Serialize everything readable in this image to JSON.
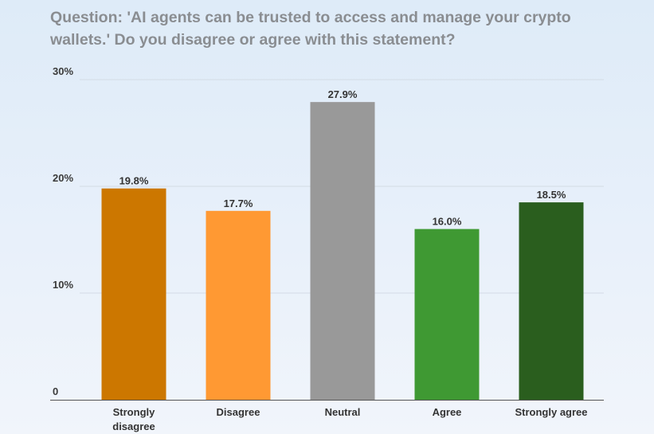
{
  "title": "Question: 'AI agents can be trusted to access and manage your crypto wallets.' Do you disagree or agree with this statement?",
  "chart_data": {
    "type": "bar",
    "title": "Question: 'AI agents can be trusted to access and manage your crypto wallets.' Do you disagree or agree with this statement?",
    "categories": [
      "Strongly disagree",
      "Disagree",
      "Neutral",
      "Agree",
      "Strongly agree"
    ],
    "category_lines": [
      [
        "Strongly",
        "disagree"
      ],
      [
        "Disagree"
      ],
      [
        "Neutral"
      ],
      [
        "Agree"
      ],
      [
        "Strongly agree"
      ]
    ],
    "values": [
      19.8,
      17.7,
      27.9,
      16.0,
      18.5
    ],
    "value_labels": [
      "19.8%",
      "17.7%",
      "27.9%",
      "16.0%",
      "18.5%"
    ],
    "colors": [
      "#cc7700",
      "#ff9933",
      "#999999",
      "#3f9933",
      "#2a5e1e"
    ],
    "ylim": [
      0,
      30
    ],
    "yticks": [
      0,
      10,
      20,
      30
    ],
    "ytick_labels": [
      "0",
      "10%",
      "20%",
      "30%"
    ],
    "grid": true,
    "xlabel": "",
    "ylabel": ""
  }
}
